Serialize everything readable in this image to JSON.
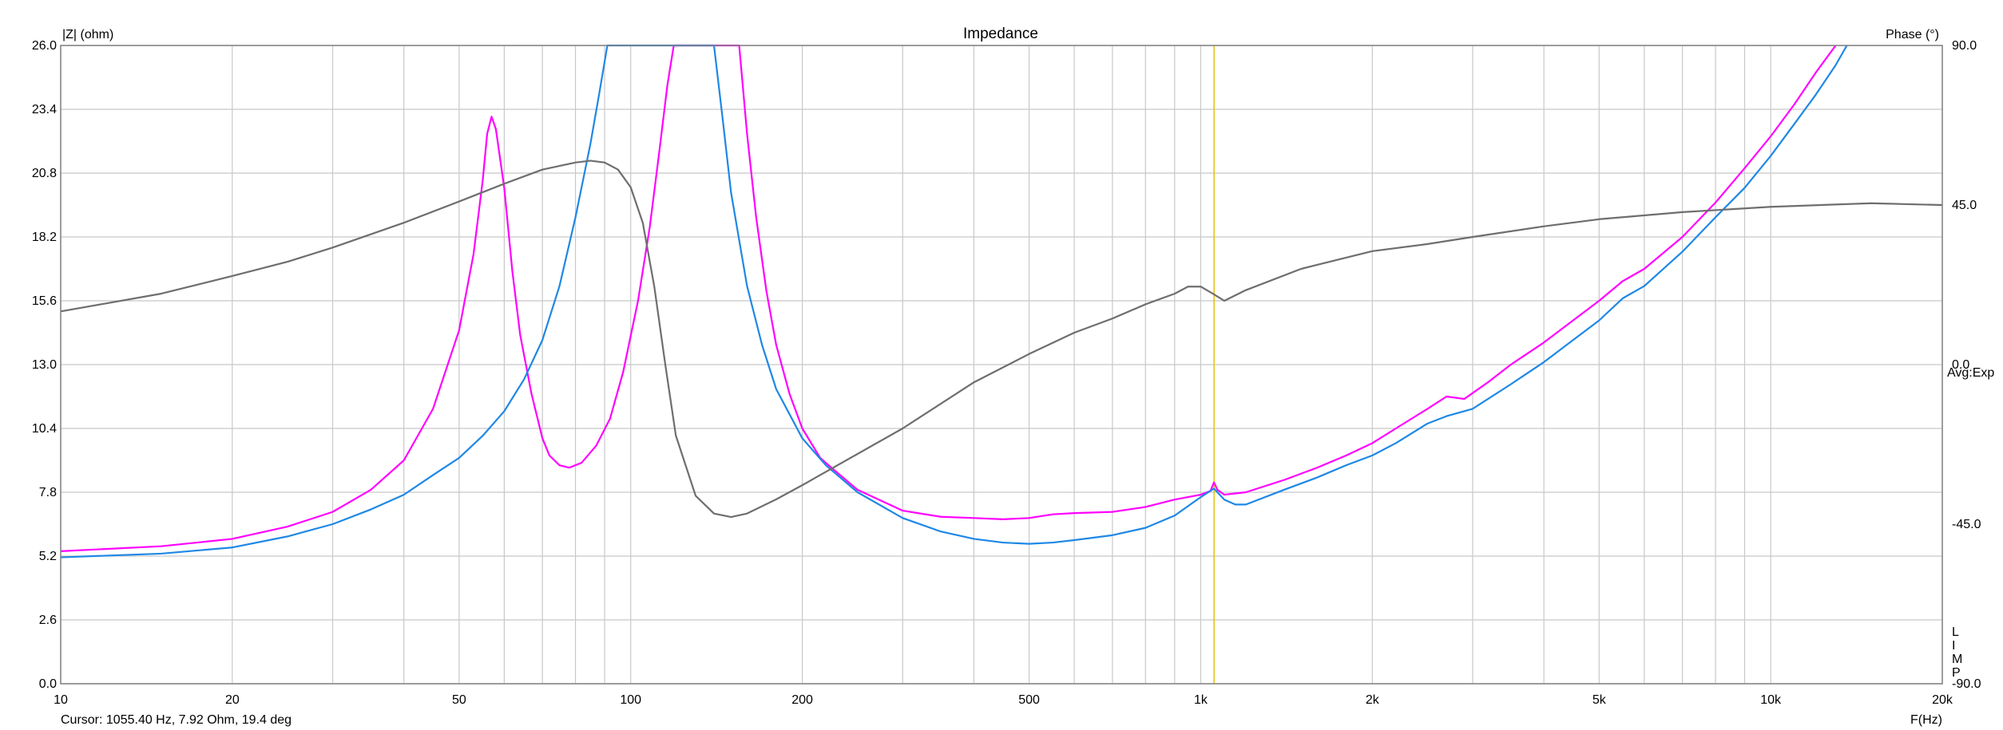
{
  "chart_data": {
    "type": "line",
    "title": "Impedance",
    "y_left_label": "|Z| (ohm)",
    "y_right_label": "Phase (°)",
    "x_axis_label": "F(Hz)",
    "x_scale": "log",
    "xlim": [
      10,
      20000
    ],
    "ylim_left": [
      0,
      26
    ],
    "ylim_right": [
      -90,
      90
    ],
    "grid": true,
    "y_left_ticks": [
      "0.0",
      "2.6",
      "5.2",
      "7.8",
      "10.4",
      "13.0",
      "15.6",
      "18.2",
      "20.8",
      "23.4",
      "26.0"
    ],
    "y_right_ticks": [
      {
        "value": 90,
        "label": "90.0"
      },
      {
        "value": 45,
        "label": "45.0"
      },
      {
        "value": 0,
        "label": "0.0"
      },
      {
        "value": -45,
        "label": "-45.0"
      },
      {
        "value": -90,
        "label": "-90.0"
      }
    ],
    "x_ticks": [
      {
        "value": 10,
        "label": "10"
      },
      {
        "value": 20,
        "label": "20"
      },
      {
        "value": 50,
        "label": "50"
      },
      {
        "value": 100,
        "label": "100"
      },
      {
        "value": 200,
        "label": "200"
      },
      {
        "value": 500,
        "label": "500"
      },
      {
        "value": 1000,
        "label": "1k"
      },
      {
        "value": 2000,
        "label": "2k"
      },
      {
        "value": 5000,
        "label": "5k"
      },
      {
        "value": 10000,
        "label": "10k"
      },
      {
        "value": 20000,
        "label": "20k"
      }
    ],
    "avg_label": "Avg:Exp",
    "limp_label": [
      "L",
      "I",
      "M",
      "P"
    ],
    "cursor_text": "Cursor: 1055.40 Hz, 7.92 Ohm, 19.4 deg",
    "cursor_frequency": 1055.4,
    "series": [
      {
        "color": "#ff00ff",
        "axis": "left",
        "points": [
          [
            10,
            5.4
          ],
          [
            15,
            5.6
          ],
          [
            20,
            5.9
          ],
          [
            25,
            6.4
          ],
          [
            30,
            7.0
          ],
          [
            35,
            7.9
          ],
          [
            40,
            9.1
          ],
          [
            45,
            11.2
          ],
          [
            50,
            14.4
          ],
          [
            53,
            17.5
          ],
          [
            55,
            20.5
          ],
          [
            56,
            22.4
          ],
          [
            57,
            23.1
          ],
          [
            58,
            22.6
          ],
          [
            60,
            20.2
          ],
          [
            62,
            16.8
          ],
          [
            64,
            14.2
          ],
          [
            67,
            11.8
          ],
          [
            70,
            10.0
          ],
          [
            72,
            9.3
          ],
          [
            75,
            8.9
          ],
          [
            78,
            8.8
          ],
          [
            82,
            9.0
          ],
          [
            87,
            9.7
          ],
          [
            92,
            10.8
          ],
          [
            97,
            12.7
          ],
          [
            103,
            15.6
          ],
          [
            108,
            18.6
          ],
          [
            112,
            21.5
          ],
          [
            116,
            24.4
          ],
          [
            119,
            26.0
          ],
          [
            155,
            26.0
          ],
          [
            160,
            22.4
          ],
          [
            166,
            19.0
          ],
          [
            173,
            16.0
          ],
          [
            180,
            13.8
          ],
          [
            190,
            11.8
          ],
          [
            200,
            10.4
          ],
          [
            215,
            9.2
          ],
          [
            225,
            8.8
          ],
          [
            250,
            7.9
          ],
          [
            300,
            7.05
          ],
          [
            350,
            6.8
          ],
          [
            400,
            6.75
          ],
          [
            450,
            6.7
          ],
          [
            500,
            6.75
          ],
          [
            550,
            6.9
          ],
          [
            600,
            6.95
          ],
          [
            700,
            7.0
          ],
          [
            800,
            7.2
          ],
          [
            900,
            7.5
          ],
          [
            1000,
            7.7
          ],
          [
            1040,
            7.85
          ],
          [
            1055,
            8.2
          ],
          [
            1070,
            7.9
          ],
          [
            1100,
            7.7
          ],
          [
            1200,
            7.8
          ],
          [
            1400,
            8.3
          ],
          [
            1600,
            8.8
          ],
          [
            1800,
            9.3
          ],
          [
            2000,
            9.8
          ],
          [
            2200,
            10.4
          ],
          [
            2500,
            11.2
          ],
          [
            2700,
            11.7
          ],
          [
            2900,
            11.6
          ],
          [
            3200,
            12.3
          ],
          [
            3500,
            13.0
          ],
          [
            4000,
            13.9
          ],
          [
            4500,
            14.8
          ],
          [
            5000,
            15.6
          ],
          [
            5500,
            16.4
          ],
          [
            6000,
            16.9
          ],
          [
            7000,
            18.2
          ],
          [
            8000,
            19.6
          ],
          [
            9000,
            21.0
          ],
          [
            10000,
            22.3
          ],
          [
            11000,
            23.6
          ],
          [
            12000,
            24.9
          ],
          [
            13000,
            26.0
          ]
        ]
      },
      {
        "color": "#1e88e5",
        "axis": "left",
        "points": [
          [
            10,
            5.15
          ],
          [
            15,
            5.3
          ],
          [
            20,
            5.55
          ],
          [
            25,
            6.0
          ],
          [
            30,
            6.5
          ],
          [
            35,
            7.1
          ],
          [
            40,
            7.7
          ],
          [
            45,
            8.5
          ],
          [
            50,
            9.2
          ],
          [
            55,
            10.1
          ],
          [
            60,
            11.1
          ],
          [
            65,
            12.4
          ],
          [
            70,
            14.0
          ],
          [
            75,
            16.2
          ],
          [
            80,
            19.0
          ],
          [
            85,
            22.0
          ],
          [
            88,
            24.0
          ],
          [
            91,
            26.0
          ],
          [
            140,
            26.0
          ],
          [
            145,
            23.0
          ],
          [
            150,
            20.0
          ],
          [
            160,
            16.2
          ],
          [
            170,
            13.8
          ],
          [
            180,
            12.0
          ],
          [
            200,
            10.0
          ],
          [
            220,
            8.9
          ],
          [
            250,
            7.8
          ],
          [
            300,
            6.75
          ],
          [
            350,
            6.2
          ],
          [
            400,
            5.9
          ],
          [
            450,
            5.75
          ],
          [
            500,
            5.7
          ],
          [
            550,
            5.75
          ],
          [
            600,
            5.85
          ],
          [
            700,
            6.05
          ],
          [
            800,
            6.35
          ],
          [
            900,
            6.85
          ],
          [
            1000,
            7.6
          ],
          [
            1055,
            7.95
          ],
          [
            1100,
            7.5
          ],
          [
            1150,
            7.3
          ],
          [
            1200,
            7.3
          ],
          [
            1400,
            7.9
          ],
          [
            1600,
            8.4
          ],
          [
            1800,
            8.9
          ],
          [
            2000,
            9.3
          ],
          [
            2200,
            9.8
          ],
          [
            2500,
            10.6
          ],
          [
            2700,
            10.9
          ],
          [
            3000,
            11.2
          ],
          [
            3500,
            12.2
          ],
          [
            4000,
            13.1
          ],
          [
            4500,
            14.0
          ],
          [
            5000,
            14.8
          ],
          [
            5500,
            15.7
          ],
          [
            6000,
            16.2
          ],
          [
            7000,
            17.6
          ],
          [
            8000,
            19.0
          ],
          [
            9000,
            20.2
          ],
          [
            10000,
            21.5
          ],
          [
            11000,
            22.8
          ],
          [
            12000,
            24.0
          ],
          [
            13000,
            25.2
          ],
          [
            13600,
            26.0
          ]
        ]
      },
      {
        "color": "#6e6e6e",
        "axis": "right",
        "points": [
          [
            10,
            15
          ],
          [
            15,
            20
          ],
          [
            20,
            25
          ],
          [
            25,
            29
          ],
          [
            30,
            33
          ],
          [
            40,
            40
          ],
          [
            50,
            46
          ],
          [
            60,
            51
          ],
          [
            70,
            55
          ],
          [
            80,
            57
          ],
          [
            85,
            57.5
          ],
          [
            90,
            57
          ],
          [
            95,
            55
          ],
          [
            100,
            50
          ],
          [
            105,
            40
          ],
          [
            110,
            22
          ],
          [
            115,
            0
          ],
          [
            120,
            -20
          ],
          [
            130,
            -37
          ],
          [
            140,
            -42
          ],
          [
            150,
            -43
          ],
          [
            160,
            -42
          ],
          [
            180,
            -38
          ],
          [
            200,
            -34
          ],
          [
            300,
            -18
          ],
          [
            400,
            -5
          ],
          [
            500,
            3
          ],
          [
            600,
            9
          ],
          [
            700,
            13
          ],
          [
            800,
            17
          ],
          [
            900,
            20
          ],
          [
            950,
            22
          ],
          [
            1000,
            22
          ],
          [
            1050,
            20
          ],
          [
            1100,
            18
          ],
          [
            1200,
            21
          ],
          [
            1500,
            27
          ],
          [
            2000,
            32
          ],
          [
            2500,
            34
          ],
          [
            3000,
            36
          ],
          [
            4000,
            39
          ],
          [
            5000,
            41
          ],
          [
            7000,
            43
          ],
          [
            10000,
            44.5
          ],
          [
            15000,
            45.5
          ],
          [
            20000,
            45
          ]
        ]
      }
    ]
  }
}
